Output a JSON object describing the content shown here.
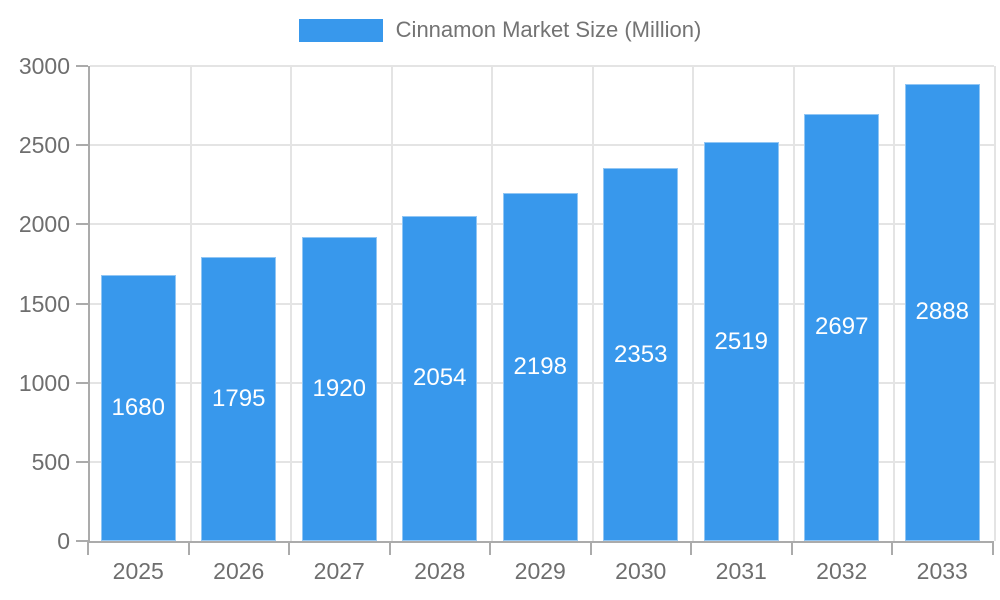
{
  "legend": {
    "label": "Cinnamon Market Size (Million)"
  },
  "chart_data": {
    "type": "bar",
    "title": "Cinnamon Market Size (Million)",
    "series_name": "Cinnamon Market Size (Million)",
    "categories": [
      "2025",
      "2026",
      "2027",
      "2028",
      "2029",
      "2030",
      "2031",
      "2032",
      "2033"
    ],
    "values": [
      1680,
      1795,
      1920,
      2054,
      2198,
      2353,
      2519,
      2697,
      2888
    ],
    "xlabel": "",
    "ylabel": "",
    "ylim": [
      0,
      3000
    ],
    "yticks": [
      0,
      500,
      1000,
      1500,
      2000,
      2500,
      3000
    ],
    "grid": true,
    "legend_position": "top-center",
    "value_labels_position": "inside-center",
    "colors": {
      "bar": "#3898EC",
      "bar_border": "#A9CEF4",
      "value_text": "#FFFFFF",
      "axis_text": "#6E6E6E",
      "legend_text": "#737373",
      "axis_line": "#ABABAB",
      "gridline": "#E4E4E4",
      "background": "#FFFFFF"
    }
  }
}
